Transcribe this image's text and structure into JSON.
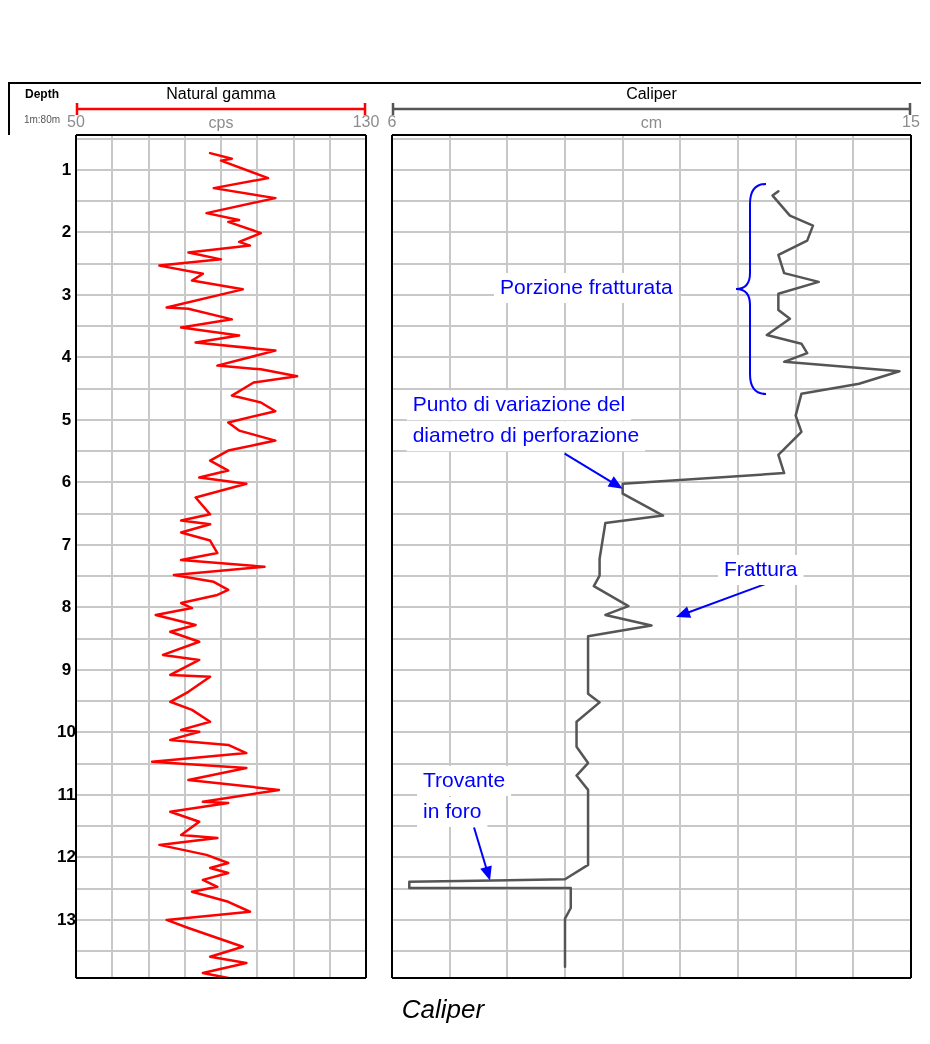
{
  "chart_data": [
    {
      "type": "line",
      "title": "Natural gamma",
      "xlabel": "cps",
      "ylabel": "Depth",
      "annotations": [
        "1m:80m"
      ],
      "xlim": [
        50,
        130
      ],
      "xticks": [
        50,
        {
          "value": 60,
          "label": null
        },
        {
          "value": 70,
          "label": null
        },
        {
          "value": 80,
          "label": null
        },
        {
          "value": 90,
          "label": null
        },
        {
          "value": 100,
          "label": null
        },
        {
          "value": 110,
          "label": null
        },
        {
          "value": 120,
          "label": null
        },
        130
      ],
      "ylim": [
        13.93,
        0.44
      ],
      "yticks": [
        {
          "value": 0.5,
          "label": null
        },
        1,
        {
          "value": 1.5,
          "label": null
        },
        2,
        {
          "value": 2.5,
          "label": null
        },
        3,
        {
          "value": 3.5,
          "label": null
        },
        4,
        {
          "value": 4.5,
          "label": null
        },
        5,
        {
          "value": 5.5,
          "label": null
        },
        6,
        {
          "value": 6.5,
          "label": null
        },
        7,
        {
          "value": 7.5,
          "label": null
        },
        8,
        {
          "value": 8.5,
          "label": null
        },
        9,
        {
          "value": 9.5,
          "label": null
        },
        10,
        {
          "value": 10.5,
          "label": null
        },
        11,
        {
          "value": 11.5,
          "label": null
        },
        12,
        {
          "value": 12.5,
          "label": null
        },
        13,
        {
          "value": 13.5,
          "label": null
        }
      ],
      "grid": true,
      "marker": "none",
      "series": [
        {
          "color": "#ff0000",
          "x": [
            87,
            93,
            90,
            103,
            88,
            105,
            86,
            95,
            92,
            101,
            95,
            98,
            81,
            90,
            73,
            85,
            82,
            96,
            75,
            81,
            93,
            79,
            95,
            83,
            105,
            89,
            101,
            111,
            99,
            93,
            101,
            105,
            92,
            95,
            105,
            92,
            87,
            92,
            84,
            97,
            83,
            87,
            79,
            87,
            79,
            87,
            89,
            79,
            102,
            77,
            88,
            92,
            89,
            79,
            82,
            72,
            83,
            76,
            84,
            74,
            84,
            76,
            87,
            81,
            76,
            82,
            87,
            79,
            84,
            76,
            92,
            97,
            71,
            97,
            81,
            106,
            85,
            92,
            76,
            84,
            79,
            89,
            73,
            86,
            92,
            87,
            92,
            85,
            89,
            82,
            92,
            98,
            75,
            81,
            96,
            87,
            97,
            85,
            92
          ],
          "values": [
            0.73,
            0.82,
            0.85,
            1.13,
            1.29,
            1.45,
            1.69,
            1.8,
            1.83,
            2.01,
            2.15,
            2.21,
            2.32,
            2.43,
            2.53,
            2.66,
            2.77,
            2.91,
            3.2,
            3.22,
            3.39,
            3.52,
            3.65,
            3.76,
            3.89,
            4.13,
            4.19,
            4.3,
            4.4,
            4.61,
            4.72,
            4.86,
            5.04,
            5.17,
            5.33,
            5.49,
            5.65,
            5.81,
            5.92,
            6.02,
            6.24,
            6.51,
            6.61,
            6.67,
            6.8,
            6.93,
            7.13,
            7.24,
            7.35,
            7.48,
            7.59,
            7.72,
            7.8,
            7.93,
            8.01,
            8.12,
            8.28,
            8.39,
            8.55,
            8.76,
            8.84,
            9.08,
            9.11,
            9.35,
            9.51,
            9.64,
            9.83,
            9.96,
            9.99,
            10.12,
            10.2,
            10.33,
            10.47,
            10.57,
            10.76,
            10.92,
            11.11,
            11.13,
            11.27,
            11.43,
            11.64,
            11.69,
            11.8,
            11.96,
            12.09,
            12.17,
            12.25,
            12.36,
            12.47,
            12.55,
            12.71,
            12.87,
            13.0,
            13.13,
            13.43,
            13.59,
            13.69,
            13.85,
            13.93
          ]
        }
      ]
    },
    {
      "type": "line",
      "title": "Caliper",
      "xlabel": "cm",
      "annotations": [
        "Porzione fratturata",
        {
          "text": "Punto di variazione del diametro di perforazione",
          "x": 10.0,
          "y": 6.1
        },
        "Frattura",
        {
          "text": "Trovante in foro",
          "x": 7.7,
          "y": 12.37
        },
        "Caliper"
      ],
      "xlim": [
        6,
        15
      ],
      "xticks": [
        6,
        {
          "value": 7,
          "label": null
        },
        {
          "value": 8,
          "label": null
        },
        {
          "value": 9,
          "label": null
        },
        {
          "value": 10,
          "label": null
        },
        {
          "value": 11,
          "label": null
        },
        {
          "value": 12,
          "label": null
        },
        {
          "value": 13,
          "label": null
        },
        {
          "value": 14,
          "label": null
        },
        15
      ],
      "ylim": [
        13.93,
        0.44
      ],
      "yticks": [
        {
          "value": 0.5,
          "label": null
        },
        1,
        {
          "value": 1.5,
          "label": null
        },
        2,
        {
          "value": 2.5,
          "label": null
        },
        3,
        {
          "value": 3.5,
          "label": null
        },
        4,
        {
          "value": 4.5,
          "label": null
        },
        5,
        {
          "value": 5.5,
          "label": null
        },
        6,
        {
          "value": 6.5,
          "label": null
        },
        7,
        {
          "value": 7.5,
          "label": null
        },
        8,
        {
          "value": 8.5,
          "label": null
        },
        9,
        {
          "value": 9.5,
          "label": null
        },
        10,
        {
          "value": 10.5,
          "label": null
        },
        11,
        {
          "value": 11.5,
          "label": null
        },
        12,
        {
          "value": 12.5,
          "label": null
        },
        13,
        {
          "value": 13.5,
          "label": null
        }
      ],
      "grid": true,
      "marker": "none",
      "tick_labels": "x",
      "series": [
        {
          "color": "#555555",
          "x": [
            12.7,
            12.6,
            12.9,
            13.3,
            13.2,
            12.7,
            12.8,
            13.4,
            12.7,
            12.7,
            12.9,
            12.5,
            13.1,
            13.2,
            12.8,
            14.8,
            14.1,
            13.1,
            13.0,
            13.1,
            12.7,
            12.8,
            10.0,
            10.0,
            10.7,
            9.7,
            9.6,
            9.6,
            9.5,
            10.1,
            9.7,
            10.5,
            9.4,
            9.4,
            9.6,
            9.2,
            9.2,
            9.4,
            9.2,
            9.4,
            9.4,
            9.0,
            6.3,
            6.3,
            9.1,
            9.1,
            9.0,
            9.0
          ],
          "values": [
            1.34,
            1.41,
            1.73,
            1.89,
            2.13,
            2.36,
            2.65,
            2.79,
            2.98,
            3.24,
            3.38,
            3.64,
            3.78,
            3.93,
            4.07,
            4.22,
            4.42,
            4.58,
            4.93,
            5.19,
            5.56,
            5.85,
            6.02,
            6.18,
            6.53,
            6.65,
            7.22,
            7.49,
            7.66,
            7.98,
            8.12,
            8.29,
            8.46,
            9.38,
            9.52,
            9.83,
            10.23,
            10.49,
            10.69,
            10.92,
            12.12,
            12.35,
            12.39,
            12.49,
            12.49,
            12.81,
            12.98,
            13.75
          ]
        }
      ]
    }
  ]
}
